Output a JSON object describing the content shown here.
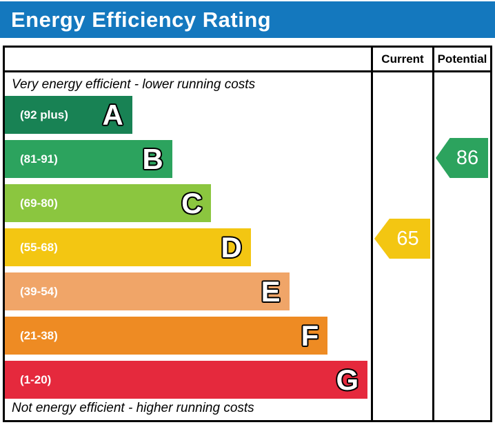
{
  "header": {
    "title": "Energy Efficiency Rating",
    "bg_color": "#1478be"
  },
  "columns": {
    "current_label": "Current",
    "potential_label": "Potential"
  },
  "captions": {
    "top": "Very energy efficient - lower running costs",
    "bottom": "Not energy efficient - higher running costs"
  },
  "bands": [
    {
      "letter": "A",
      "range_label": "(92 plus)",
      "color": "#188254",
      "width_pct": 34.8
    },
    {
      "letter": "B",
      "range_label": "(81-91)",
      "color": "#2ca35e",
      "width_pct": 45.7
    },
    {
      "letter": "C",
      "range_label": "(69-80)",
      "color": "#8bc63f",
      "width_pct": 56.4
    },
    {
      "letter": "D",
      "range_label": "(55-68)",
      "color": "#f3c612",
      "width_pct": 67.2
    },
    {
      "letter": "E",
      "range_label": "(39-54)",
      "color": "#f0a568",
      "width_pct": 77.7
    },
    {
      "letter": "F",
      "range_label": "(21-38)",
      "color": "#ee8b23",
      "width_pct": 88.2
    },
    {
      "letter": "G",
      "range_label": "(1-20)",
      "color": "#e5293d",
      "width_pct": 99.1
    }
  ],
  "markers": {
    "current": {
      "value": "65",
      "band": "D",
      "color": "#f3c612"
    },
    "potential": {
      "value": "86",
      "band": "B",
      "color": "#2ca35e"
    }
  },
  "chart_data": {
    "type": "bar",
    "title": "Energy Efficiency Rating",
    "orientation": "horizontal",
    "categories": [
      "A",
      "B",
      "C",
      "D",
      "E",
      "F",
      "G"
    ],
    "band_ranges": [
      "92 plus",
      "81-91",
      "69-80",
      "55-68",
      "39-54",
      "21-38",
      "1-20"
    ],
    "band_colors": [
      "#188254",
      "#2ca35e",
      "#8bc63f",
      "#f3c612",
      "#f0a568",
      "#ee8b23",
      "#e5293d"
    ],
    "bar_lengths_pct": [
      34.8,
      45.7,
      56.4,
      67.2,
      77.7,
      88.2,
      99.1
    ],
    "columns": [
      "Current",
      "Potential"
    ],
    "markers": [
      {
        "name": "Current",
        "value": 65,
        "band": "D",
        "color": "#f3c612"
      },
      {
        "name": "Potential",
        "value": 86,
        "band": "B",
        "color": "#2ca35e"
      }
    ],
    "annotations": [
      "Very energy efficient - lower running costs",
      "Not energy efficient - higher running costs"
    ],
    "scale": [
      1,
      100
    ],
    "legend": "none",
    "grid": "off"
  }
}
